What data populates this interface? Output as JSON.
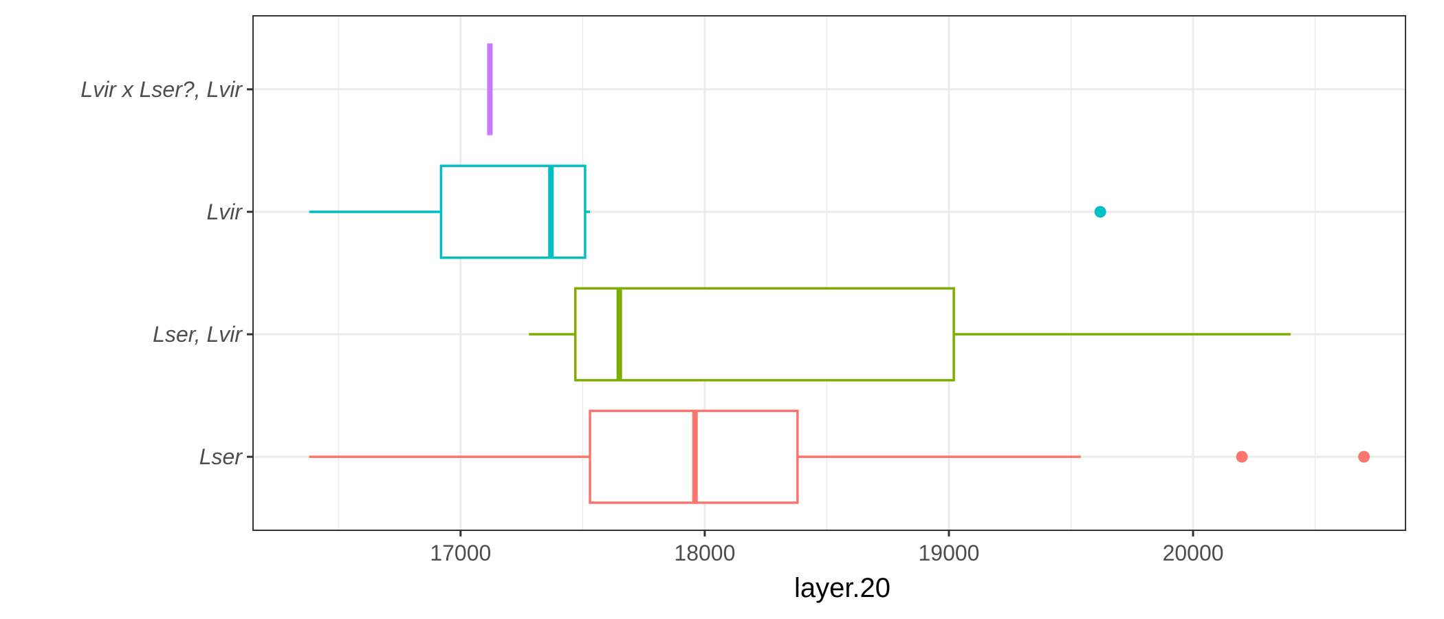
{
  "chart_data": {
    "type": "boxplot",
    "orientation": "horizontal",
    "xlabel": "layer.20",
    "xlim": [
      16150,
      20870
    ],
    "x_ticks": [
      17000,
      18000,
      19000,
      20000
    ],
    "x_minor_ticks": [
      16500,
      17500,
      18500,
      19500,
      20500
    ],
    "grid": true,
    "legend": "none",
    "categories": [
      "Lser",
      "Lser, Lvir",
      "Lvir",
      "Lvir x Lser?, Lvir"
    ],
    "series": [
      {
        "category": "Lser",
        "color": "#F8766D",
        "whisker_low": 16380,
        "q1": 17530,
        "median": 17960,
        "q3": 18380,
        "whisker_high": 19540,
        "outliers": [
          20200,
          20700
        ]
      },
      {
        "category": "Lser, Lvir",
        "color": "#7CAE00",
        "whisker_low": 17280,
        "q1": 17470,
        "median": 17650,
        "q3": 19020,
        "whisker_high": 20400,
        "outliers": []
      },
      {
        "category": "Lvir",
        "color": "#00BFC4",
        "whisker_low": 16380,
        "q1": 16920,
        "median": 17370,
        "q3": 17510,
        "whisker_high": 17530,
        "outliers": [
          19620
        ]
      },
      {
        "category": "Lvir x Lser?, Lvir",
        "color": "#C77CFF",
        "whisker_low": 17120,
        "q1": 17120,
        "median": 17120,
        "q3": 17120,
        "whisker_high": 17120,
        "outliers": []
      }
    ]
  }
}
